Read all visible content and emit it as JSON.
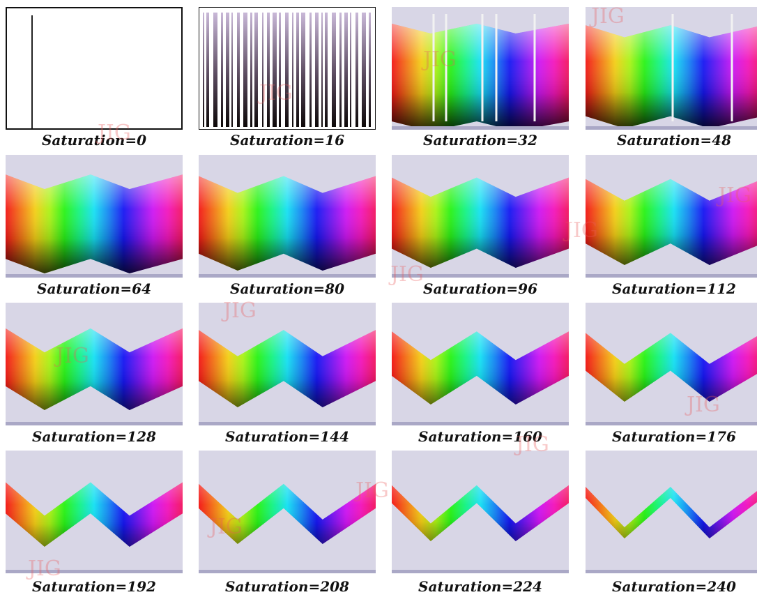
{
  "panels": [
    {
      "caption": "Saturation=0",
      "saturation": 0
    },
    {
      "caption": "Saturation=16",
      "saturation": 16
    },
    {
      "caption": "Saturation=32",
      "saturation": 32
    },
    {
      "caption": "Saturation=48",
      "saturation": 48
    },
    {
      "caption": "Saturation=64",
      "saturation": 64
    },
    {
      "caption": "Saturation=80",
      "saturation": 80
    },
    {
      "caption": "Saturation=96",
      "saturation": 96
    },
    {
      "caption": "Saturation=112",
      "saturation": 112
    },
    {
      "caption": "Saturation=128",
      "saturation": 128
    },
    {
      "caption": "Saturation=144",
      "saturation": 144
    },
    {
      "caption": "Saturation=160",
      "saturation": 160
    },
    {
      "caption": "Saturation=176",
      "saturation": 176
    },
    {
      "caption": "Saturation=192",
      "saturation": 192
    },
    {
      "caption": "Saturation=208",
      "saturation": 208
    },
    {
      "caption": "Saturation=224",
      "saturation": 224
    },
    {
      "caption": "Saturation=240",
      "saturation": 240
    }
  ],
  "watermark": {
    "text": "JIG",
    "color": "#e85a5a"
  },
  "colors": {
    "panel_background": "#d8d6e6",
    "panel_bottom_bar": "#aaa8c6",
    "caption": "#111111"
  }
}
